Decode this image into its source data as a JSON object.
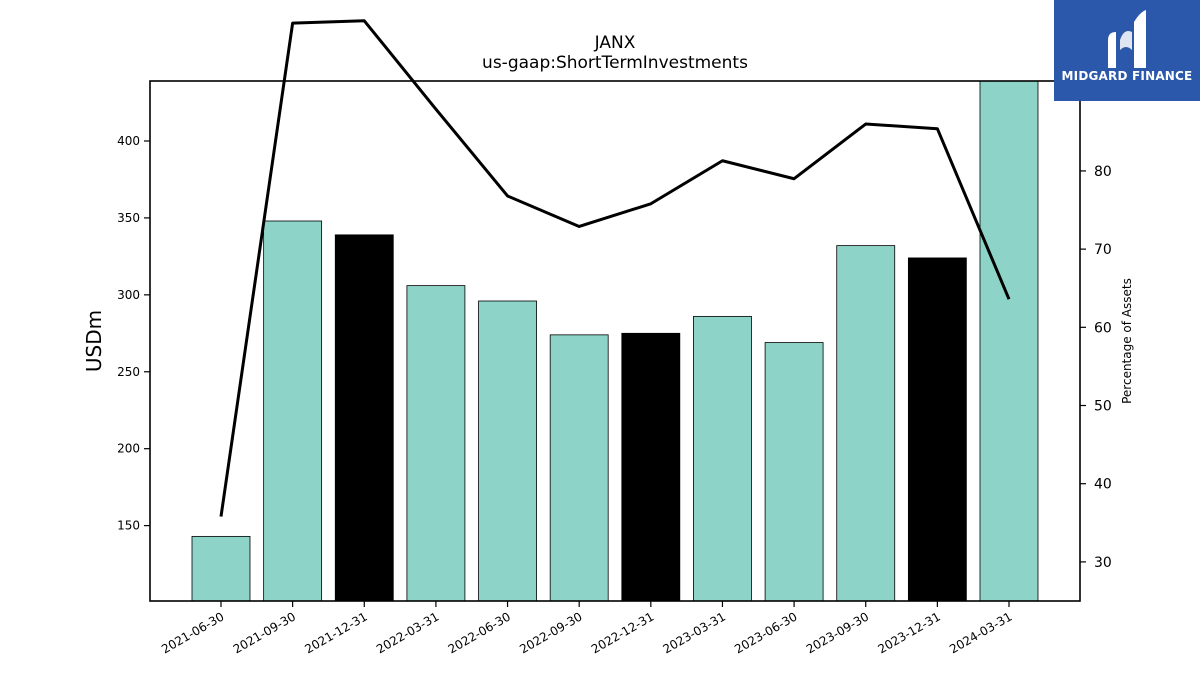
{
  "chart_data": {
    "type": "bar",
    "title": "JANX",
    "subtitle": "us-gaap:ShortTermInvestments",
    "ylabel": "USDm",
    "y2label": "Percentage of Assets",
    "categories": [
      "2021-06-30",
      "2021-09-30",
      "2021-12-31",
      "2022-03-31",
      "2022-06-30",
      "2022-09-30",
      "2022-12-31",
      "2023-03-31",
      "2023-06-30",
      "2023-09-30",
      "2023-12-31",
      "2024-03-31"
    ],
    "values": [
      143,
      348,
      339,
      306,
      296,
      274,
      275,
      286,
      269,
      332,
      324,
      439
    ],
    "bar_colors": [
      "#8dd3c7",
      "#8dd3c7",
      "#000000",
      "#8dd3c7",
      "#8dd3c7",
      "#8dd3c7",
      "#000000",
      "#8dd3c7",
      "#8dd3c7",
      "#8dd3c7",
      "#000000",
      "#8dd3c7"
    ],
    "line_series": {
      "values": [
        35.8,
        98.9,
        99.2,
        87.9,
        76.8,
        72.9,
        75.8,
        81.3,
        79.0,
        86.0,
        85.4,
        63.6
      ],
      "color": "#000000",
      "axis": "right"
    },
    "ylim": [
      101,
      439
    ],
    "y2lim": [
      25,
      91.5
    ],
    "yticks": [
      150,
      200,
      250,
      300,
      350,
      400
    ],
    "y2ticks": [
      30,
      40,
      50,
      60,
      70,
      80
    ],
    "grid": false,
    "legend": "none"
  },
  "logo": {
    "text": "MIDGARD FINANCE",
    "background": "#2b58aa"
  }
}
